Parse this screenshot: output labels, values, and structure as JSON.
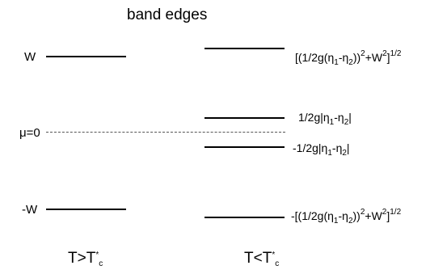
{
  "title": "band edges",
  "left_labels": {
    "w": "W",
    "mu": "μ=0",
    "neg_w": "-W"
  },
  "expr_top": {
    "p1": "[(1/2g(η",
    "s1": "1",
    "p2": "-η",
    "s2": "2",
    "p3": "))",
    "e1": "2",
    "p4": "+W",
    "e2": "2",
    "p5": "]",
    "e3": "1/2"
  },
  "expr_upper": {
    "p1": "1/2g|η",
    "s1": "1",
    "p2": "-η",
    "s2": "2",
    "p3": "|"
  },
  "expr_lower": {
    "p1": "-1/2g|η",
    "s1": "1",
    "p2": "-η",
    "s2": "2",
    "p3": "|"
  },
  "expr_bottom": {
    "p1": "-[(1/2g(η",
    "s1": "1",
    "p2": "-η",
    "s2": "2",
    "p3": "))",
    "e1": "2",
    "p4": "+W",
    "e2": "2",
    "p5": "]",
    "e3": "1/2"
  },
  "axis_left": {
    "base": "T>T",
    "sup": "*",
    "sub": "c"
  },
  "axis_right": {
    "base": "T<T",
    "sup": "*",
    "sub": "c"
  }
}
